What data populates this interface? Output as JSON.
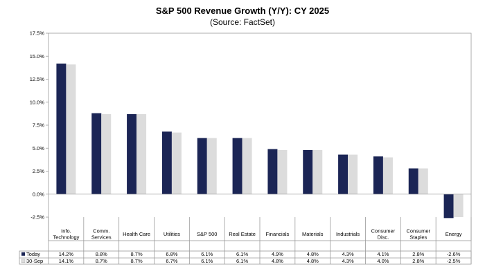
{
  "chart_data": {
    "type": "bar",
    "title": "S&P 500 Revenue Growth (Y/Y): CY 2025",
    "subtitle": "(Source: FactSet)",
    "categories": [
      "Info.\nTechnology",
      "Comm.\nServices",
      "Health Care",
      "Utilities",
      "S&P 500",
      "Real Estate",
      "Financials",
      "Materials",
      "Industrials",
      "Consumer\nDisc.",
      "Consumer\nStaples",
      "Energy"
    ],
    "series": [
      {
        "name": "Today",
        "values": [
          14.2,
          8.8,
          8.7,
          6.8,
          6.1,
          6.1,
          4.9,
          4.8,
          4.3,
          4.1,
          2.8,
          -2.6
        ],
        "labels": [
          "14.2%",
          "8.8%",
          "8.7%",
          "6.8%",
          "6.1%",
          "6.1%",
          "4.9%",
          "4.8%",
          "4.3%",
          "4.1%",
          "2.8%",
          "-2.6%"
        ],
        "color": "#1b2555"
      },
      {
        "name": "30-Sep",
        "values": [
          14.1,
          8.7,
          8.7,
          6.7,
          6.1,
          6.1,
          4.8,
          4.8,
          4.3,
          4.0,
          2.8,
          -2.5
        ],
        "labels": [
          "14.1%",
          "8.7%",
          "8.7%",
          "6.7%",
          "6.1%",
          "6.1%",
          "4.8%",
          "4.8%",
          "4.3%",
          "4.0%",
          "2.8%",
          "-2.5%"
        ],
        "color": "#dcdcdc"
      }
    ],
    "yticks": [
      17.5,
      15.0,
      12.5,
      10.0,
      7.5,
      5.0,
      2.5,
      0.0,
      -2.5
    ],
    "ytick_labels": [
      "17.5%",
      "15.0%",
      "12.5%",
      "10.0%",
      "7.5%",
      "5.0%",
      "2.5%",
      "0.0%",
      "-2.5%"
    ],
    "ylim": [
      -2.5,
      17.5
    ],
    "grid": false,
    "legend": "data-table",
    "xlabel": "",
    "ylabel": ""
  }
}
